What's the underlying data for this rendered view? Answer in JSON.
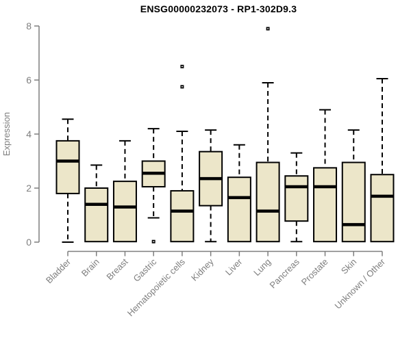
{
  "chart_data": {
    "type": "boxplot",
    "title": "ENSG00000232073 - RP1-302D9.3",
    "ylabel": "Expression",
    "xlabel": "",
    "ylim": [
      0,
      8
    ],
    "yticks": [
      0,
      2,
      4,
      6,
      8
    ],
    "grid": false,
    "legend": false,
    "categories": [
      "Bladder",
      "Brain",
      "Breast",
      "Gastric",
      "Hematopoietic cells",
      "Kidney",
      "Liver",
      "Lung",
      "Pancreas",
      "Prostate",
      "Skin",
      "Unknown / Other"
    ],
    "series": [
      {
        "category": "Bladder",
        "whisker_low": 0,
        "q1": 1.8,
        "median": 3.0,
        "q3": 3.75,
        "whisker_high": 4.55,
        "outliers": []
      },
      {
        "category": "Brain",
        "whisker_low": 0.02,
        "q1": 0.02,
        "median": 1.4,
        "q3": 2.0,
        "whisker_high": 2.85,
        "outliers": []
      },
      {
        "category": "Breast",
        "whisker_low": 0.02,
        "q1": 0.02,
        "median": 1.3,
        "q3": 2.25,
        "whisker_high": 3.75,
        "outliers": []
      },
      {
        "category": "Gastric",
        "whisker_low": 0.9,
        "q1": 2.05,
        "median": 2.55,
        "q3": 3.0,
        "whisker_high": 4.2,
        "outliers": [
          0.02
        ]
      },
      {
        "category": "Hematopoietic cells",
        "whisker_low": 0.02,
        "q1": 0.02,
        "median": 1.15,
        "q3": 1.9,
        "whisker_high": 4.1,
        "outliers": [
          5.75,
          6.5
        ]
      },
      {
        "category": "Kidney",
        "whisker_low": 0.02,
        "q1": 1.35,
        "median": 2.35,
        "q3": 3.35,
        "whisker_high": 4.15,
        "outliers": []
      },
      {
        "category": "Liver",
        "whisker_low": 0.02,
        "q1": 0.02,
        "median": 1.65,
        "q3": 2.4,
        "whisker_high": 3.6,
        "outliers": []
      },
      {
        "category": "Lung",
        "whisker_low": 0.02,
        "q1": 0.02,
        "median": 1.15,
        "q3": 2.95,
        "whisker_high": 5.9,
        "outliers": [
          7.9
        ]
      },
      {
        "category": "Pancreas",
        "whisker_low": 0.02,
        "q1": 0.78,
        "median": 2.05,
        "q3": 2.45,
        "whisker_high": 3.3,
        "outliers": []
      },
      {
        "category": "Prostate",
        "whisker_low": 0.02,
        "q1": 0.02,
        "median": 2.05,
        "q3": 2.75,
        "whisker_high": 4.9,
        "outliers": []
      },
      {
        "category": "Skin",
        "whisker_low": 0.02,
        "q1": 0.02,
        "median": 0.65,
        "q3": 2.95,
        "whisker_high": 4.15,
        "outliers": []
      },
      {
        "category": "Unknown / Other",
        "whisker_low": 0.02,
        "q1": 0.02,
        "median": 1.7,
        "q3": 2.5,
        "whisker_high": 6.05,
        "outliers": []
      }
    ],
    "colors": {
      "box_fill": "#ECE6C9",
      "box_border": "#000000",
      "median": "#000000",
      "whisker": "#000000",
      "outlier": "#000000",
      "axis": "#7E7E7E",
      "tick_label": "#7E7E7E",
      "title": "#000000",
      "background": "#FFFFFF"
    }
  }
}
